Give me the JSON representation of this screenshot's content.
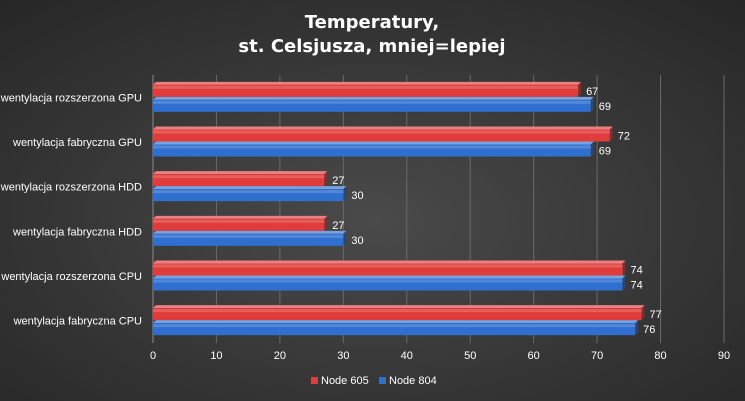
{
  "chart_data": {
    "type": "bar",
    "orientation": "horizontal",
    "title_lines": [
      "Temperatury,",
      "st. Celsjusza, mniej=lepiej"
    ],
    "categories": [
      "wentylacja rozszerzona GPU",
      "wentylacja fabryczna GPU",
      "wentylacja rozszerzona HDD",
      "wentylacja fabryczna HDD",
      "wentylacja rozszerzona CPU",
      "wentylacja fabryczna CPU"
    ],
    "series": [
      {
        "name": "Node 605",
        "color": "#e03c3c",
        "values": [
          67,
          72,
          27,
          27,
          74,
          77
        ]
      },
      {
        "name": "Node 804",
        "color": "#2f6fd0",
        "values": [
          69,
          69,
          30,
          30,
          74,
          76
        ]
      }
    ],
    "xlim": [
      0,
      90
    ],
    "xticks": [
      0,
      10,
      20,
      30,
      40,
      50,
      60,
      70,
      80,
      90
    ],
    "grid": "vertical",
    "legend_position": "bottom",
    "background": "#3d3d3d",
    "plot_background": "#3d3d3d"
  }
}
